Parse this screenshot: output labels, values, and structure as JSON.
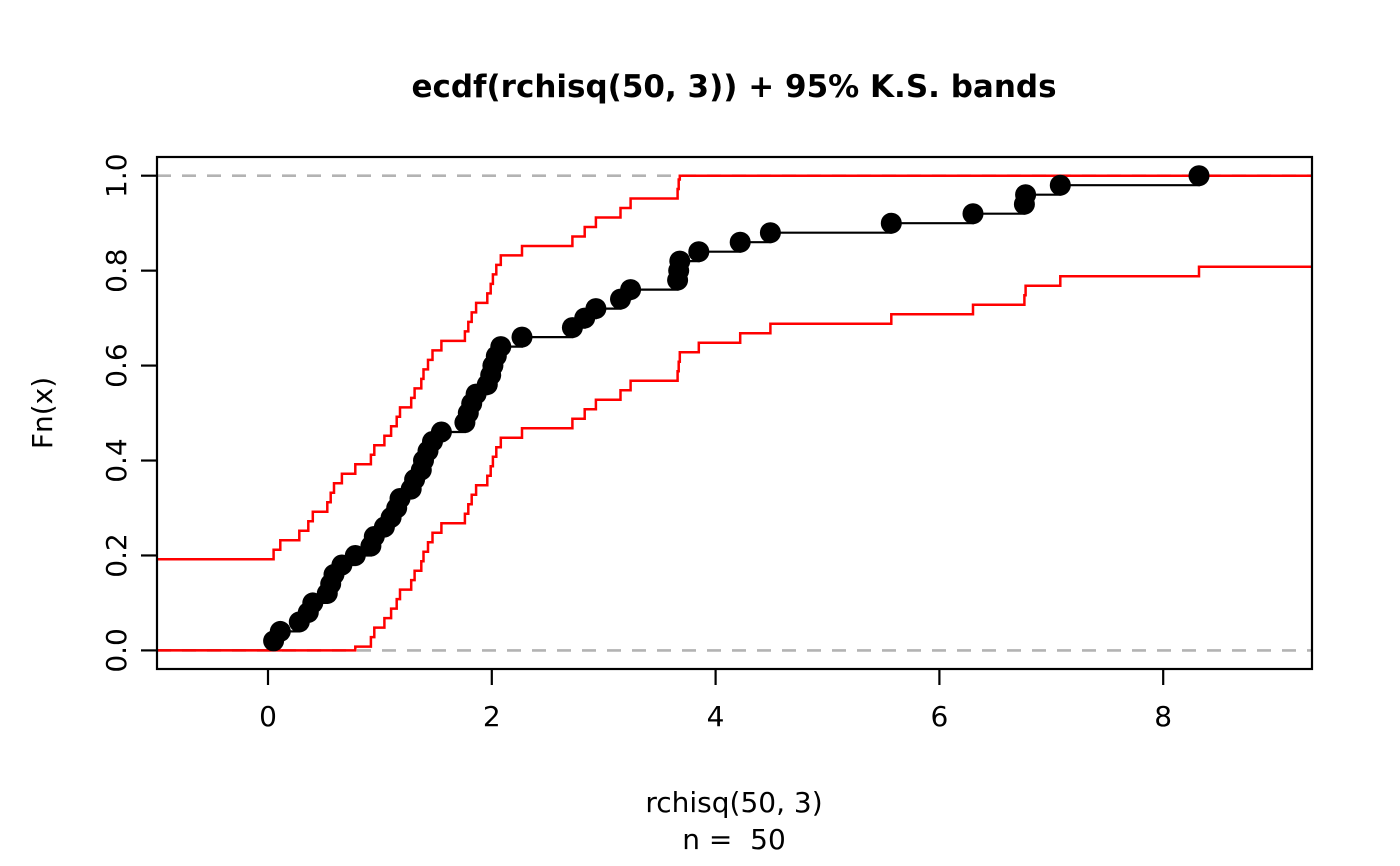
{
  "figure": {
    "title": "ecdf(rchisq(50, 3)) + 95% K.S. bands",
    "xlabel": "rchisq(50, 3)",
    "xlabel_line2": "n =  50",
    "ylabel": "Fn(x)"
  },
  "chart_data": {
    "type": "line",
    "subtype": "ecdf-step-with-confidence-bands",
    "title": "ecdf(rchisq(50, 3)) + 95% K.S. bands",
    "xlabel": "rchisq(50, 3)",
    "xlabel_line2": "n =  50",
    "ylabel": "Fn(x)",
    "n": 50,
    "sorted_sample_x": [
      0.05,
      0.11,
      0.28,
      0.36,
      0.4,
      0.53,
      0.56,
      0.59,
      0.66,
      0.78,
      0.92,
      0.95,
      1.04,
      1.1,
      1.15,
      1.18,
      1.28,
      1.31,
      1.37,
      1.39,
      1.43,
      1.47,
      1.55,
      1.76,
      1.79,
      1.82,
      1.86,
      1.96,
      1.99,
      2.01,
      2.04,
      2.08,
      2.27,
      2.72,
      2.83,
      2.93,
      3.15,
      3.24,
      3.66,
      3.67,
      3.68,
      3.85,
      4.22,
      4.49,
      5.57,
      6.3,
      6.76,
      6.77,
      7.08,
      8.32
    ],
    "ecdf_step_height": 0.02,
    "ks_band_halfwidth": 0.192,
    "ks_band_level": "95%",
    "reference_lines_y": [
      0,
      1
    ],
    "x_ticks": [
      {
        "v": 0,
        "label": "0"
      },
      {
        "v": 2,
        "label": "2"
      },
      {
        "v": 4,
        "label": "4"
      },
      {
        "v": 6,
        "label": "6"
      },
      {
        "v": 8,
        "label": "8"
      }
    ],
    "y_ticks": [
      {
        "v": 0,
        "label": "0.0"
      },
      {
        "v": 0.2,
        "label": "0.2"
      },
      {
        "v": 0.4,
        "label": "0.4"
      },
      {
        "v": 0.6,
        "label": "0.6"
      },
      {
        "v": 0.8,
        "label": "0.8"
      },
      {
        "v": 1,
        "label": "1.0"
      }
    ],
    "xlim": [
      -0.99,
      9.33
    ],
    "ylim": [
      -0.039,
      1.039
    ],
    "grid": "off",
    "legend": "none",
    "colors": {
      "ecdf_line": "#000000",
      "ecdf_points": "#000000",
      "ks_band": "#ff0000",
      "reference_dashed": "#b3b3b3",
      "axis": "#000000",
      "background": "#ffffff"
    }
  }
}
